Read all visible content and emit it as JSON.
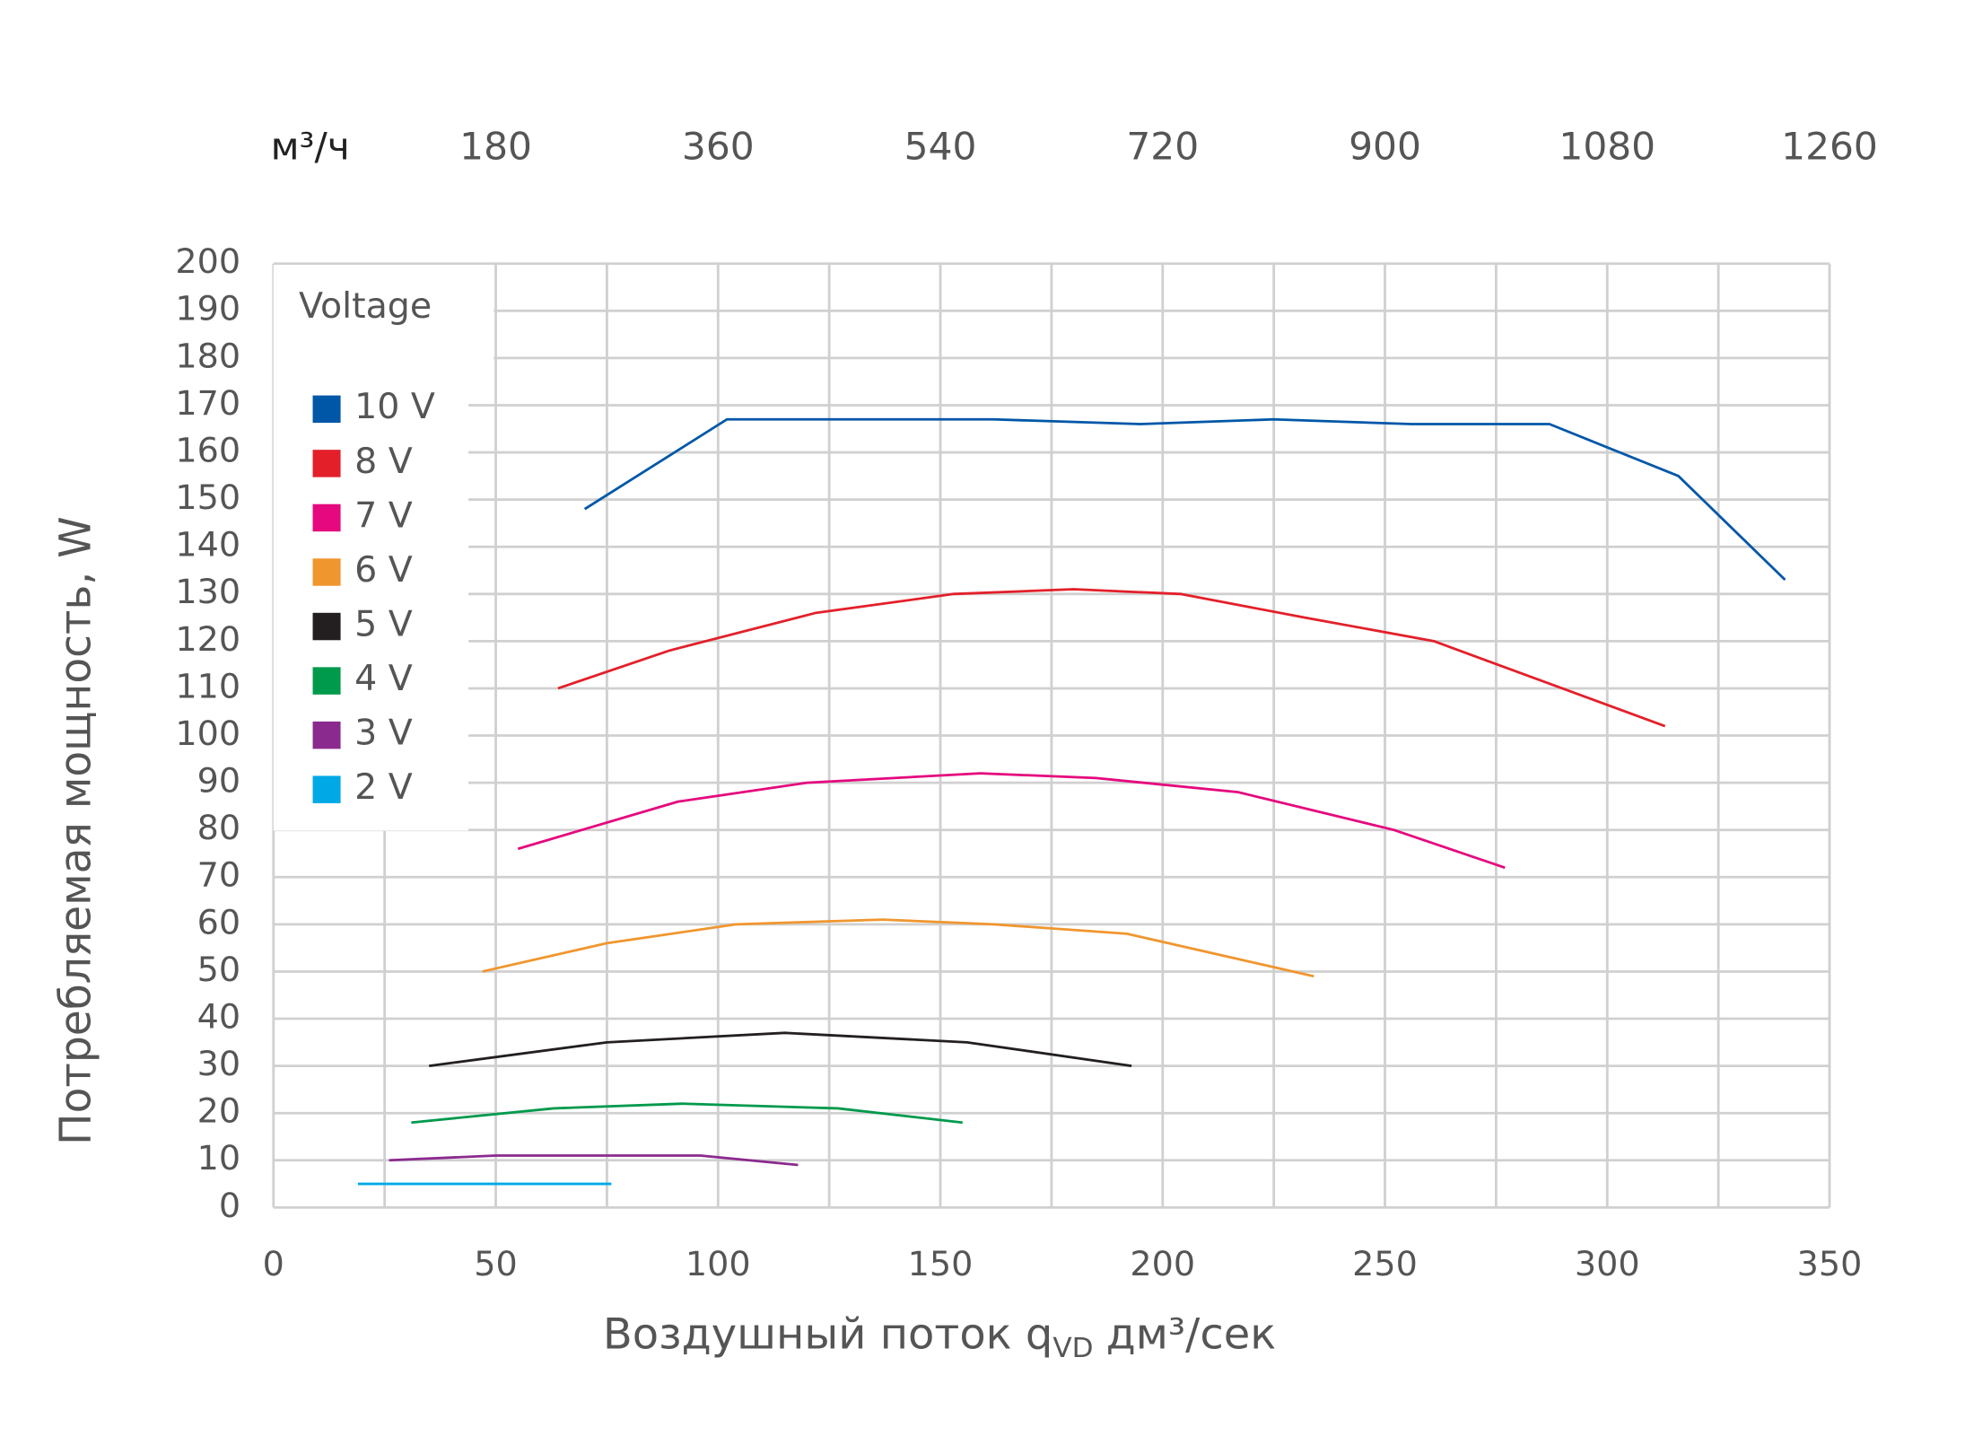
{
  "chart_data": {
    "type": "line",
    "x_label": {
      "main": "Воздушный поток q",
      "sub": "VD",
      "unit": "дм³/сек"
    },
    "y_label": "Потребляемая мощность, W",
    "x2_label": "м³/ч",
    "legend_title": "Voltage",
    "legend_position": "upper left",
    "grid": true,
    "xlim": [
      0,
      350
    ],
    "xticks": [
      0,
      50,
      100,
      150,
      200,
      250,
      300,
      350
    ],
    "ylim": [
      0,
      200
    ],
    "yticks": [
      0,
      10,
      20,
      30,
      40,
      50,
      60,
      70,
      80,
      90,
      100,
      110,
      120,
      130,
      140,
      150,
      160,
      170,
      180,
      190,
      200
    ],
    "x2lim": [
      0,
      1260
    ],
    "x2ticks": [
      180,
      360,
      540,
      720,
      900,
      1080,
      1260
    ],
    "series": [
      {
        "name": "10 V",
        "color": "#0057a8",
        "x": [
          70,
          102,
          162,
          195,
          225,
          256,
          287,
          316,
          340
        ],
        "values": [
          148,
          167,
          167,
          166,
          167,
          166,
          166,
          155,
          133
        ]
      },
      {
        "name": "8 V",
        "color": "#e3202a",
        "x": [
          64,
          89,
          122,
          153,
          180,
          204,
          232,
          261,
          313
        ],
        "values": [
          110,
          118,
          126,
          130,
          131,
          130,
          125,
          120,
          102
        ]
      },
      {
        "name": "7 V",
        "color": "#e5087e",
        "x": [
          55,
          91,
          120,
          159,
          185,
          217,
          252,
          277
        ],
        "values": [
          76,
          86,
          90,
          92,
          91,
          88,
          80,
          72
        ]
      },
      {
        "name": "6 V",
        "color": "#f0962e",
        "x": [
          47,
          75,
          104,
          137,
          162,
          192,
          234
        ],
        "values": [
          50,
          56,
          60,
          61,
          60,
          58,
          49
        ]
      },
      {
        "name": "5 V",
        "color": "#231f20",
        "x": [
          35,
          75,
          115,
          156,
          193
        ],
        "values": [
          30,
          35,
          37,
          35,
          30
        ]
      },
      {
        "name": "4 V",
        "color": "#009a4c",
        "x": [
          31,
          63,
          92,
          127,
          155
        ],
        "values": [
          18,
          21,
          22,
          21,
          18
        ]
      },
      {
        "name": "3 V",
        "color": "#8b2a8e",
        "x": [
          26,
          50,
          96,
          118
        ],
        "values": [
          10,
          11,
          11,
          9
        ]
      },
      {
        "name": "2 V",
        "color": "#00a9e6",
        "x": [
          19,
          76
        ],
        "values": [
          5,
          5
        ]
      }
    ]
  }
}
